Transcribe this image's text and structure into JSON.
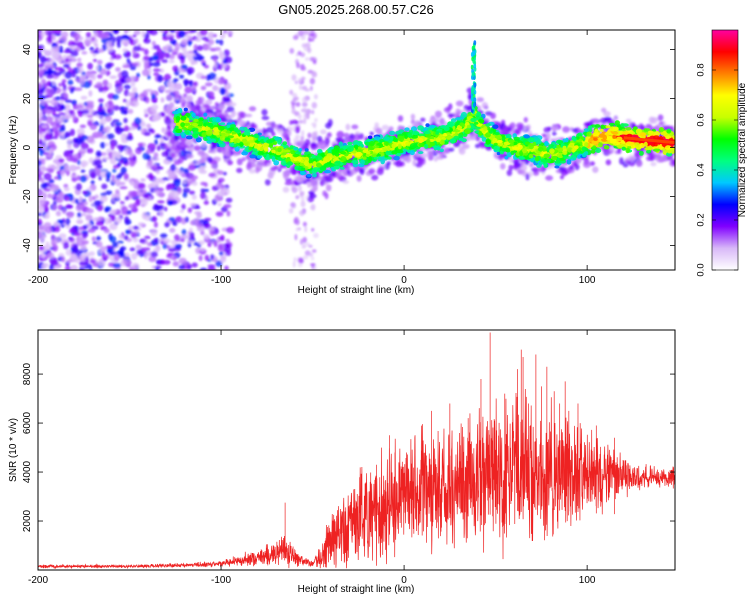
{
  "title": "GN05.2025.268.00.57.C26",
  "colorbar": {
    "label": "Normalized spectral amplitude",
    "ticks": [
      0.0,
      0.2,
      0.4,
      0.6,
      0.8
    ],
    "tick_labels": [
      "0.0",
      "0.2",
      "0.4",
      "0.6",
      "0.8"
    ],
    "range": [
      0,
      0.96
    ],
    "stops": [
      "#ffffff",
      "#d8b8f8",
      "#8000ff",
      "#0000ff",
      "#00c8ff",
      "#00ff80",
      "#00ff00",
      "#c8ff00",
      "#ffff00",
      "#ff8000",
      "#ff0000",
      "#ff00a0"
    ]
  },
  "chart_data": [
    {
      "type": "heatmap",
      "title": "",
      "xlabel": "Height of straight line (km)",
      "ylabel": "Frequency (Hz)",
      "xlim": [
        -200,
        148
      ],
      "ylim": [
        -50,
        48
      ],
      "xticks": [
        -200,
        -100,
        0,
        100
      ],
      "xtick_labels": [
        "-200",
        "-100",
        "0",
        "100"
      ],
      "yticks": [
        -40,
        -20,
        0,
        20,
        40
      ],
      "ytick_labels": [
        "-40",
        "-20",
        "0",
        "20",
        "40"
      ],
      "ridge": {
        "x": [
          -120,
          -110,
          -100,
          -90,
          -80,
          -70,
          -60,
          -55,
          -50,
          -45,
          -40,
          -30,
          -20,
          -10,
          0,
          10,
          20,
          30,
          35,
          38,
          40,
          45,
          50,
          60,
          70,
          80,
          90,
          100,
          110,
          120,
          130,
          148
        ],
        "y": [
          10,
          8,
          6,
          4,
          1,
          -1,
          -4,
          -6,
          -7,
          -6,
          -4,
          -3,
          -2,
          0,
          2,
          3,
          4,
          7,
          9,
          14,
          10,
          6,
          3,
          0,
          -1,
          -3,
          -1,
          2,
          5,
          4,
          3,
          2
        ]
      },
      "spike": {
        "x": 38,
        "y_top": 43
      }
    },
    {
      "type": "line",
      "title": "",
      "xlabel": "Height of straight line (km)",
      "ylabel": "SNR (10 * v/v)",
      "xlim": [
        -200,
        148
      ],
      "ylim": [
        0,
        9800
      ],
      "xticks": [
        -200,
        -100,
        0,
        100
      ],
      "xtick_labels": [
        "-200",
        "-100",
        "0",
        "100"
      ],
      "yticks": [
        2000,
        4000,
        6000,
        8000
      ],
      "ytick_labels": [
        "2000",
        "4000",
        "6000",
        "8000"
      ],
      "series": [
        {
          "color": "#ee2222",
          "envelope": {
            "x": [
              -200,
              -150,
              -120,
              -100,
              -90,
              -80,
              -70,
              -65,
              -60,
              -55,
              -50,
              -45,
              -40,
              -35,
              -30,
              -25,
              -20,
              -15,
              -10,
              -5,
              0,
              10,
              20,
              30,
              40,
              50,
              60,
              70,
              80,
              90,
              100,
              110,
              120,
              130,
              148
            ],
            "mean": [
              150,
              150,
              200,
              250,
              400,
              500,
              700,
              800,
              500,
              350,
              250,
              600,
              1100,
              1500,
              1800,
              2100,
              2300,
              2500,
              2700,
              2900,
              3100,
              3300,
              3500,
              3600,
              3700,
              3800,
              4000,
              4100,
              4100,
              4000,
              3900,
              3800,
              3800,
              3800,
              3800
            ],
            "amplitude": [
              80,
              80,
              100,
              150,
              300,
              400,
              600,
              800,
              500,
              200,
              150,
              800,
              1400,
              1800,
              2000,
              2200,
              2400,
              2600,
              2600,
              2600,
              2700,
              2800,
              3000,
              3200,
              3400,
              3600,
              3600,
              3400,
              3200,
              2800,
              2200,
              1600,
              1000,
              600,
              500
            ]
          },
          "peaks": [
            [
              -65,
              2750
            ],
            [
              -15,
              4300
            ],
            [
              -8,
              5500
            ],
            [
              -5,
              4800
            ],
            [
              15,
              6500
            ],
            [
              25,
              6800
            ],
            [
              35,
              6200
            ],
            [
              42,
              7800
            ],
            [
              47,
              9700
            ],
            [
              55,
              7200
            ],
            [
              62,
              8200
            ],
            [
              64,
              9000
            ],
            [
              65,
              8700
            ],
            [
              68,
              6800
            ],
            [
              72,
              8800
            ],
            [
              75,
              7500
            ],
            [
              78,
              8300
            ],
            [
              82,
              7300
            ],
            [
              85,
              6800
            ],
            [
              88,
              7700
            ],
            [
              90,
              6500
            ],
            [
              95,
              6800
            ],
            [
              105,
              5900
            ],
            [
              115,
              5400
            ]
          ]
        }
      ]
    }
  ]
}
